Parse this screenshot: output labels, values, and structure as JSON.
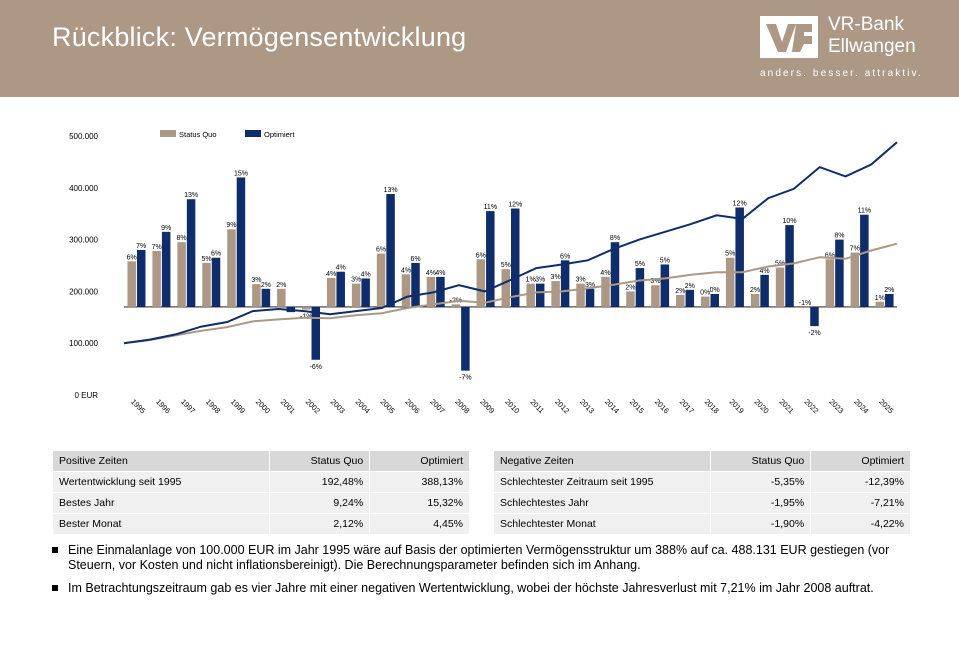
{
  "header": {
    "title": "Rückblick: Vermögensentwicklung",
    "bank_name_line1": "VR-Bank",
    "bank_name_line2": "Ellwangen",
    "slogan": "anders. besser. attraktiv.",
    "background_color": "#ad9886"
  },
  "chart_data": {
    "type": "bar",
    "legend_position": "top-left",
    "grid": false,
    "ylim": [
      0,
      500000
    ],
    "yticks": [
      "0 EUR",
      "100.000",
      "200.000",
      "300.000",
      "400.000",
      "500.000"
    ],
    "categories": [
      "1995",
      "1996",
      "1997",
      "1998",
      "1999",
      "2000",
      "2001",
      "2002",
      "2003",
      "2004",
      "2005",
      "2006",
      "2007",
      "2008",
      "2009",
      "2010",
      "2011",
      "2012",
      "2013",
      "2014",
      "2015",
      "2016",
      "2017",
      "2018",
      "2019",
      "2020",
      "2021",
      "2022",
      "2023",
      "2024",
      "2025"
    ],
    "series": [
      {
        "name": "Status Quo",
        "color": "#ad9886",
        "kind": "bar",
        "values": [
          258000,
          278000,
          295000,
          255000,
          320000,
          214000,
          205000,
          165000,
          226000,
          215000,
          273000,
          233000,
          228000,
          175000,
          262000,
          243000,
          215000,
          220000,
          215000,
          228000,
          200000,
          212000,
          193000,
          190000,
          265000,
          195000,
          246000,
          170000,
          262000,
          275000,
          180000
        ],
        "labels": [
          "6%",
          "7%",
          "8%",
          "5%",
          "9%",
          "3%",
          "2%",
          "-1%",
          "4%",
          "3%",
          "6%",
          "4%",
          "4%",
          "-2%",
          "6%",
          "5%",
          "1%",
          "3%",
          "3%",
          "4%",
          "2%",
          "3%",
          "2%",
          "0%",
          "5%",
          "2%",
          "5%",
          "-1%",
          "6%",
          "7%",
          "1%"
        ]
      },
      {
        "name": "Optimiert",
        "color": "#0f2d6b",
        "kind": "bar",
        "values": [
          280000,
          315000,
          378000,
          265000,
          420000,
          205000,
          160000,
          68000,
          238000,
          225000,
          388000,
          255000,
          228000,
          47000,
          355000,
          360000,
          215000,
          260000,
          205000,
          295000,
          245000,
          252000,
          203000,
          195000,
          362000,
          232000,
          328000,
          133000,
          300000,
          348000,
          195000
        ],
        "labels": [
          "7%",
          "9%",
          "13%",
          "6%",
          "15%",
          "2%",
          "",
          "-6%",
          "4%",
          "4%",
          "13%",
          "6%",
          "4%",
          "-7%",
          "11%",
          "12%",
          "3%",
          "6%",
          "3%",
          "8%",
          "5%",
          "5%",
          "2%",
          "0%",
          "12%",
          "4%",
          "10%",
          "-2%",
          "8%",
          "11%",
          "2%"
        ]
      },
      {
        "name": "Status Quo (Wertentwicklung)",
        "color": "#ad9886",
        "kind": "line",
        "x": [
          1995,
          1996,
          1997,
          1998,
          1999,
          2000,
          2001,
          2002,
          2003,
          2004,
          2005,
          2006,
          2007,
          2008,
          2009,
          2010,
          2011,
          2012,
          2013,
          2014,
          2015,
          2016,
          2017,
          2018,
          2019,
          2020,
          2021,
          2022,
          2023,
          2024,
          2025
        ],
        "values": [
          100000,
          106000,
          115000,
          124000,
          131000,
          142000,
          146000,
          149000,
          148000,
          154000,
          158000,
          168000,
          175000,
          182000,
          178000,
          189000,
          198000,
          200000,
          206000,
          213000,
          221000,
          225000,
          232000,
          237000,
          237000,
          248000,
          254000,
          266000,
          263000,
          279000,
          292000
        ]
      },
      {
        "name": "Optimiert (Wertentwicklung)",
        "color": "#0f2d6b",
        "kind": "line",
        "x": [
          1995,
          1996,
          1997,
          1998,
          1999,
          2000,
          2001,
          2002,
          2003,
          2004,
          2005,
          2006,
          2007,
          2008,
          2009,
          2010,
          2011,
          2012,
          2013,
          2014,
          2015,
          2016,
          2017,
          2018,
          2019,
          2020,
          2021,
          2022,
          2023,
          2024,
          2025
        ],
        "values": [
          100000,
          107000,
          117000,
          132000,
          141000,
          162000,
          166000,
          162000,
          156000,
          162000,
          168000,
          190000,
          198000,
          212000,
          200000,
          222000,
          245000,
          252000,
          260000,
          282000,
          300000,
          315000,
          330000,
          347000,
          340000,
          380000,
          398000,
          440000,
          422000,
          445000,
          488000
        ]
      }
    ]
  },
  "tables": {
    "positive": {
      "headers": [
        "Positive Zeiten",
        "Status Quo",
        "Optimiert"
      ],
      "rows": [
        [
          "Wertentwicklung seit 1995",
          "192,48%",
          "388,13%"
        ],
        [
          "Bestes Jahr",
          "9,24%",
          "15,32%"
        ],
        [
          "Bester Monat",
          "2,12%",
          "4,45%"
        ]
      ]
    },
    "negative": {
      "headers": [
        "Negative Zeiten",
        "Status Quo",
        "Optimiert"
      ],
      "rows": [
        [
          "Schlechtester Zeitraum seit 1995",
          "-5,35%",
          "-12,39%"
        ],
        [
          "Schlechtestes Jahr",
          "-1,95%",
          "-7,21%"
        ],
        [
          "Schlechtester Monat",
          "-1,90%",
          "-4,22%"
        ]
      ]
    }
  },
  "notes": [
    "Eine Einmalanlage von 100.000 EUR im Jahr 1995 wäre auf Basis der optimierten Vermögensstruktur um 388% auf ca. 488.131 EUR gestiegen (vor Steuern, vor Kosten und nicht inflationsbereinigt). Die Berechnungsparameter befinden sich im Anhang.",
    "Im Betrachtungszeitraum gab es vier Jahre mit einer negativen Wertentwicklung, wobei der höchste Jahresverlust mit 7,21% im Jahr 2008 auftrat."
  ]
}
